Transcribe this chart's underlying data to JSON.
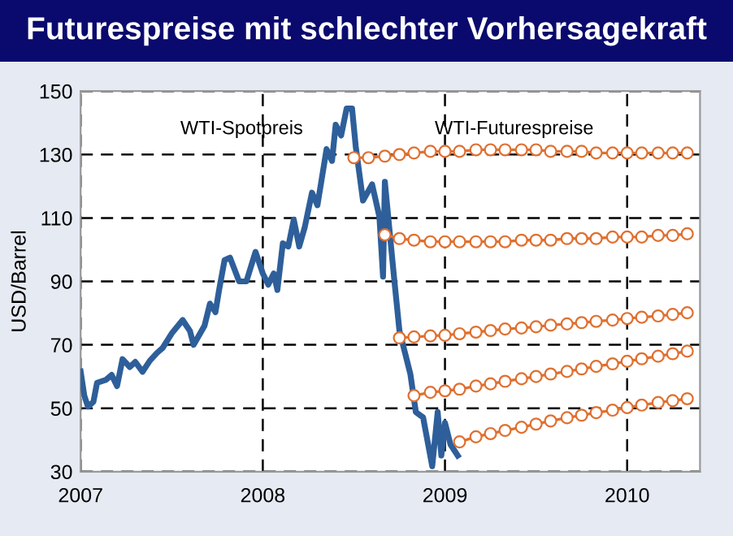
{
  "chart_data": {
    "type": "line",
    "title": "Futurespreise mit schlechter Vorhersagekraft",
    "ylabel": "USD/Barrel",
    "xlim": [
      2007,
      2010.4
    ],
    "xticks": [
      2007,
      2008,
      2009,
      2010
    ],
    "ylim": [
      30,
      150
    ],
    "yticks": [
      30,
      50,
      70,
      90,
      110,
      130,
      150
    ],
    "grid": true,
    "annotations": [
      "WTI-Spotpreis",
      "WTI-Futurespreise"
    ],
    "series": [
      {
        "color": "#2e5f9a",
        "marker": "none",
        "x": [
          2007.0,
          2007.02,
          2007.04,
          2007.07,
          2007.09,
          2007.14,
          2007.17,
          2007.2,
          2007.23,
          2007.27,
          2007.3,
          2007.34,
          2007.38,
          2007.42,
          2007.45,
          2007.5,
          2007.56,
          2007.6,
          2007.62,
          2007.68,
          2007.71,
          2007.74,
          2007.76,
          2007.79,
          2007.82,
          2007.87,
          2007.91,
          2007.96,
          2008.0,
          2008.03,
          2008.06,
          2008.08,
          2008.11,
          2008.14,
          2008.17,
          2008.2,
          2008.23,
          2008.27,
          2008.3,
          2008.35,
          2008.38,
          2008.4,
          2008.43,
          2008.46,
          2008.49,
          2008.51,
          2008.55,
          2008.6,
          2008.64,
          2008.66,
          2008.67,
          2008.72,
          2008.75,
          2008.78,
          2008.81,
          2008.84,
          2008.88,
          2008.93,
          2008.96,
          2008.98,
          2009.0,
          2009.03,
          2009.07
        ],
        "values": [
          61.6,
          54,
          50.5,
          52,
          58,
          59,
          60.5,
          57,
          65.5,
          63,
          64.6,
          61.5,
          65,
          67.5,
          69,
          73.6,
          77.8,
          74.4,
          70,
          76,
          83,
          80.3,
          87.3,
          96.7,
          97.5,
          90,
          90,
          99.3,
          92.5,
          89,
          92.5,
          87.3,
          102,
          101,
          109.5,
          101,
          107,
          118,
          114,
          131.7,
          128,
          139.4,
          136,
          144.5,
          144.5,
          132.6,
          115.5,
          120.6,
          110.4,
          91.5,
          121.4,
          91.5,
          74.5,
          67.6,
          60.8,
          48.8,
          47.1,
          31.7,
          48.8,
          35.1,
          45.4,
          38.6,
          35.1
        ]
      },
      {
        "color": "#e07030",
        "marker": "circle",
        "x": [
          2008.5,
          2008.58,
          2008.67,
          2008.75,
          2008.83,
          2008.92,
          2009.0,
          2009.08,
          2009.17,
          2009.25,
          2009.33,
          2009.42,
          2009.5,
          2009.58,
          2009.67,
          2009.75,
          2009.83,
          2009.92,
          2010.0,
          2010.08,
          2010.17,
          2010.25,
          2010.33
        ],
        "values": [
          129,
          129,
          129.5,
          130,
          130.5,
          131,
          131,
          131,
          131.5,
          131.5,
          131.5,
          131.5,
          131.5,
          131,
          131,
          131,
          130.5,
          130.5,
          130.5,
          130.5,
          130.5,
          130.5,
          130.5
        ]
      },
      {
        "color": "#e07030",
        "marker": "circle",
        "x": [
          2008.67,
          2008.75,
          2008.83,
          2008.92,
          2009.0,
          2009.08,
          2009.17,
          2009.25,
          2009.33,
          2009.42,
          2009.5,
          2009.58,
          2009.67,
          2009.75,
          2009.83,
          2009.92,
          2010.0,
          2010.08,
          2010.17,
          2010.25,
          2010.33
        ],
        "values": [
          104.7,
          103.5,
          103,
          102.5,
          102.5,
          102.5,
          102.5,
          102.5,
          102.5,
          103,
          103,
          103,
          103.5,
          103.5,
          103.5,
          104,
          104,
          104,
          104.5,
          104.5,
          105
        ]
      },
      {
        "color": "#e07030",
        "marker": "circle",
        "x": [
          2008.75,
          2008.83,
          2008.92,
          2009.0,
          2009.08,
          2009.17,
          2009.25,
          2009.33,
          2009.42,
          2009.5,
          2009.58,
          2009.67,
          2009.75,
          2009.83,
          2009.92,
          2010.0,
          2010.08,
          2010.17,
          2010.25,
          2010.33
        ],
        "values": [
          72.2,
          72.5,
          72.8,
          73,
          73.5,
          74,
          74.5,
          75,
          75.3,
          75.7,
          76.2,
          76.6,
          77,
          77.4,
          77.8,
          78.3,
          78.7,
          79.1,
          79.6,
          80.1
        ]
      },
      {
        "color": "#e07030",
        "marker": "circle",
        "x": [
          2008.83,
          2008.92,
          2009.0,
          2009.08,
          2009.17,
          2009.25,
          2009.33,
          2009.42,
          2009.5,
          2009.58,
          2009.67,
          2009.75,
          2009.83,
          2009.92,
          2010.0,
          2010.08,
          2010.17,
          2010.25,
          2010.33
        ],
        "values": [
          54,
          55,
          55.5,
          56,
          57,
          57.7,
          58.5,
          59.3,
          60,
          60.8,
          61.6,
          62.4,
          63.2,
          64,
          64.8,
          65.6,
          66.4,
          67.2,
          68
        ]
      },
      {
        "color": "#e07030",
        "marker": "circle",
        "x": [
          2009.08,
          2009.17,
          2009.25,
          2009.33,
          2009.42,
          2009.5,
          2009.58,
          2009.67,
          2009.75,
          2009.83,
          2009.92,
          2010.0,
          2010.08,
          2010.17,
          2010.25,
          2010.33
        ],
        "values": [
          39.4,
          41,
          42,
          43,
          44,
          45,
          46,
          47,
          47.8,
          48.6,
          49.4,
          50.2,
          51,
          51.8,
          52.4,
          53
        ]
      }
    ]
  }
}
